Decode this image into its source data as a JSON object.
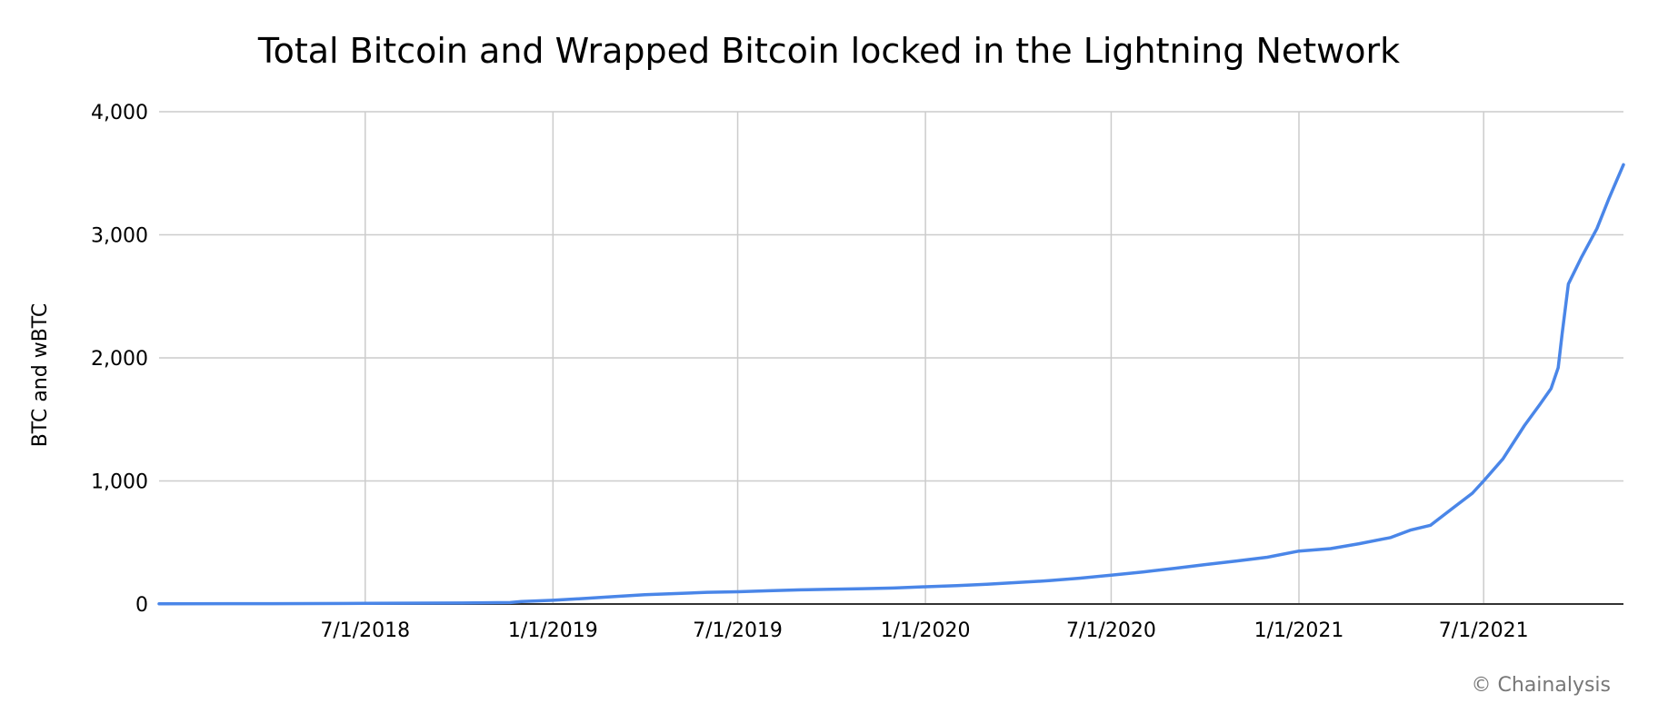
{
  "chart_data": {
    "type": "line",
    "title": "Total Bitcoin and Wrapped Bitcoin locked in the Lightning Network",
    "xlabel": "",
    "ylabel": "BTC and wBTC",
    "ylim": [
      0,
      4000
    ],
    "xlim": [
      "2017-12-11",
      "2021-11-15"
    ],
    "grid": true,
    "legend": "none",
    "y_ticks": [
      "0",
      "1,000",
      "2,000",
      "3,000",
      "4,000"
    ],
    "y_tick_values": [
      0,
      1000,
      2000,
      3000,
      4000
    ],
    "x_ticks": [
      "7/1/2018",
      "1/1/2019",
      "7/1/2019",
      "1/1/2020",
      "7/1/2020",
      "1/1/2021",
      "7/1/2021"
    ],
    "x_tick_dates": [
      "2018-07-01",
      "2019-01-01",
      "2019-07-01",
      "2020-01-01",
      "2020-07-01",
      "2021-01-01",
      "2021-07-01"
    ],
    "series": [
      {
        "color": "#4a86e8",
        "x": [
          "2017-12-11",
          "2018-04-01",
          "2018-07-01",
          "2018-10-01",
          "2018-11-20",
          "2018-12-01",
          "2019-01-01",
          "2019-02-01",
          "2019-03-01",
          "2019-04-01",
          "2019-05-01",
          "2019-06-01",
          "2019-07-01",
          "2019-08-01",
          "2019-09-01",
          "2019-10-01",
          "2019-11-01",
          "2019-12-01",
          "2020-01-01",
          "2020-02-01",
          "2020-03-01",
          "2020-04-01",
          "2020-05-01",
          "2020-06-01",
          "2020-07-01",
          "2020-08-01",
          "2020-09-01",
          "2020-10-01",
          "2020-11-01",
          "2020-12-01",
          "2021-01-01",
          "2021-02-01",
          "2021-03-01",
          "2021-04-01",
          "2021-04-20",
          "2021-05-10",
          "2021-06-01",
          "2021-06-20",
          "2021-07-01",
          "2021-07-20",
          "2021-08-10",
          "2021-08-25",
          "2021-09-05",
          "2021-09-12",
          "2021-09-16",
          "2021-09-22",
          "2021-10-05",
          "2021-10-20",
          "2021-11-01",
          "2021-11-15"
        ],
        "values": [
          2,
          3,
          5,
          8,
          12,
          20,
          30,
          45,
          60,
          75,
          85,
          95,
          100,
          108,
          115,
          120,
          125,
          130,
          140,
          150,
          160,
          175,
          190,
          210,
          235,
          260,
          290,
          320,
          350,
          380,
          430,
          450,
          490,
          540,
          600,
          640,
          780,
          900,
          1000,
          1180,
          1450,
          1620,
          1750,
          1920,
          2200,
          2600,
          2820,
          3050,
          3300,
          3570
        ]
      }
    ]
  },
  "credit": "© Chainalysis"
}
